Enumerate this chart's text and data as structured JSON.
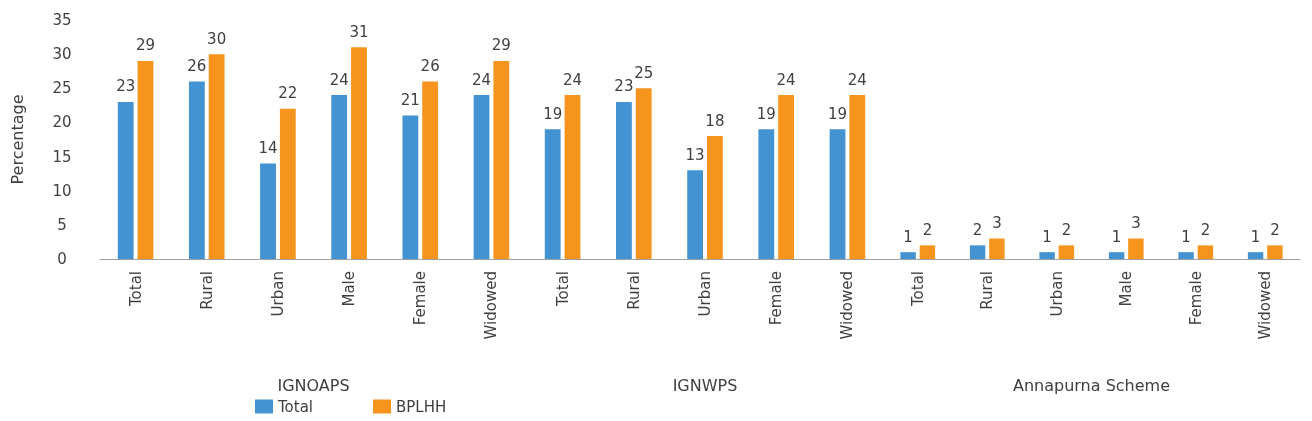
{
  "chart_data": [
    {
      "type": "bar",
      "xlabel": "IGNOAPS",
      "ylabel": "Percentage",
      "categories": [
        "Total",
        "Rural",
        "Urban",
        "Male",
        "Female",
        "Widowed"
      ],
      "series": [
        {
          "name": "Total",
          "color": "#4393d3",
          "values": [
            23,
            26,
            14,
            24,
            21,
            24
          ]
        },
        {
          "name": "BPLHH",
          "color": "#f7941d",
          "values": [
            29,
            30,
            22,
            31,
            26,
            29
          ]
        }
      ],
      "ylim": [
        0,
        35
      ],
      "yticks": [
        0,
        5,
        10,
        15,
        20,
        25,
        30,
        35
      ],
      "data_labels": true,
      "grid": false,
      "legend": "bottom"
    },
    {
      "type": "bar",
      "xlabel": "IGNWPS",
      "categories": [
        "Total",
        "Rural",
        "Urban",
        "Female",
        "Widowed"
      ],
      "series": [
        {
          "color": "#4393d3",
          "values": [
            19,
            23,
            13,
            19,
            19
          ]
        },
        {
          "color": "#f7941d",
          "values": [
            24,
            25,
            18,
            24,
            24
          ]
        }
      ],
      "ylim": [
        0,
        35
      ],
      "yticks": [
        0,
        5,
        10,
        15,
        20,
        25,
        30,
        35
      ],
      "tick_labels": "x",
      "data_labels": true,
      "grid": false
    },
    {
      "type": "bar",
      "xlabel": "Annapurna Scheme",
      "categories": [
        "Total",
        "Rural",
        "Urban",
        "Male",
        "Female",
        "Widowed"
      ],
      "series": [
        {
          "color": "#4393d3",
          "values": [
            1,
            2,
            1,
            1,
            1,
            1
          ]
        },
        {
          "color": "#f7941d",
          "values": [
            2,
            3,
            2,
            3,
            2,
            2
          ]
        }
      ],
      "ylim": [
        0,
        35
      ],
      "yticks": [
        0,
        5,
        10,
        15,
        20,
        25,
        30,
        35
      ],
      "tick_labels": "x",
      "data_labels": true,
      "grid": false
    }
  ]
}
